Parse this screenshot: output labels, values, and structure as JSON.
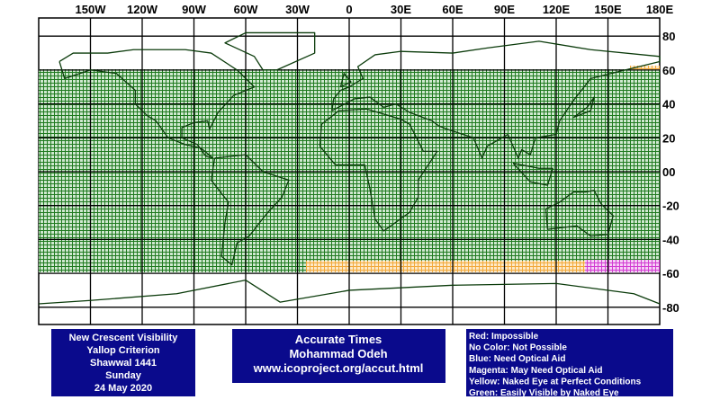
{
  "longitude_labels": [
    "150W",
    "120W",
    "90W",
    "60W",
    "30W",
    "0",
    "30E",
    "60E",
    "90E",
    "120E",
    "150E",
    "180E"
  ],
  "latitude_labels": [
    "80",
    "60",
    "40",
    "20",
    "00",
    "-20",
    "-40",
    "-60",
    "-80"
  ],
  "info_box": {
    "lines": [
      "New Crescent Visibility",
      "Yallop Criterion",
      "Shawwal 1441",
      "Sunday",
      "24 May 2020"
    ]
  },
  "credit_box": {
    "lines": [
      "Accurate Times",
      "Mohammad Odeh",
      "www.icoproject.org/accut.html"
    ]
  },
  "legend_box": {
    "lines": [
      "Red: Impossible",
      "No Color: Not Possible",
      "Blue: Need Optical Aid",
      "Magenta: May Need Optical Aid",
      "Yellow: Naked Eye at Perfect Conditions",
      "Green: Easily Visible by Naked Eye"
    ]
  }
}
